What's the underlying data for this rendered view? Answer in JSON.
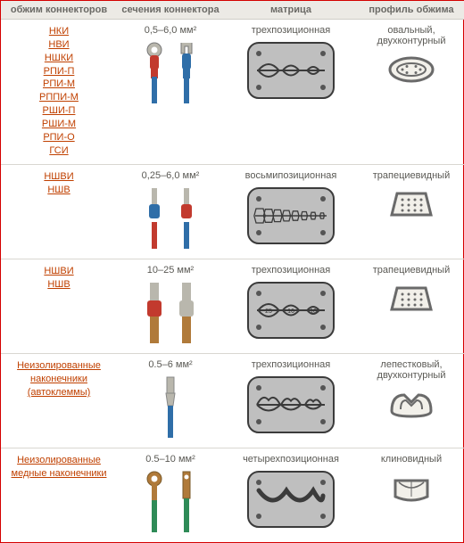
{
  "headers": {
    "col1": "обжим коннекторов",
    "col2": "сечения коннектора",
    "col3": "матрица",
    "col4": "профиль обжима"
  },
  "colors": {
    "border": "#d40000",
    "header_bg": "#eceae5",
    "header_text": "#6b6a66",
    "link": "#c04000",
    "die_fill": "#bfbfbf",
    "die_stroke": "#3b3b3b",
    "prof_stroke": "#6a6a6a",
    "prof_fill": "#f2f0ea",
    "wire_red": "#c23a2e",
    "wire_blue": "#2f6ea8",
    "wire_green": "#2e8b57",
    "copper": "#b07a3a",
    "metal": "#b9b7ad"
  },
  "rows": [
    {
      "links": [
        "НКИ",
        "НВИ",
        "НШКИ",
        "РПИ-П",
        "РПИ-М",
        "РППИ-М",
        "РШИ-П",
        "РШИ-М",
        "РПИ-О",
        "ГСИ"
      ],
      "section": "0,5–6,0 мм²",
      "matrix": "трехпозиционная",
      "profile": "овальный, двухконтурный",
      "die_type": "three",
      "profile_type": "oval",
      "connectors": [
        {
          "shape": "ring",
          "sleeve": "#c23a2e",
          "wire": "#2f6ea8"
        },
        {
          "shape": "fork",
          "sleeve": "#2f6ea8",
          "wire": "#2f6ea8"
        }
      ]
    },
    {
      "links": [
        "НШВИ",
        "НШВ"
      ],
      "section": "0,25–6,0 мм²",
      "matrix": "восьмипозиционная",
      "profile": "трапециевидный",
      "die_type": "eight",
      "profile_type": "trap",
      "connectors": [
        {
          "shape": "ferrule",
          "sleeve": "#2f6ea8",
          "wire": "#c23a2e"
        },
        {
          "shape": "ferrule",
          "sleeve": "#c23a2e",
          "wire": "#2f6ea8"
        }
      ]
    },
    {
      "links": [
        "НШВИ",
        "НШВ"
      ],
      "section": "10–25 мм²",
      "matrix": "трехпозиционная",
      "profile": "трапециевидный",
      "die_type": "three_lbl",
      "die_labels": [
        "25",
        "16",
        "10"
      ],
      "profile_type": "trap",
      "connectors": [
        {
          "shape": "bigferrule",
          "sleeve": "#c23a2e",
          "wire": "#b07a3a"
        },
        {
          "shape": "bigferrule",
          "sleeve": "#b9b7ad",
          "wire": "#b07a3a"
        }
      ]
    },
    {
      "links": [
        "Неизолированные наконечники (автоклеммы)"
      ],
      "section": "0.5–6 мм²",
      "matrix": "трехпозиционная",
      "profile": "лепестковый, двухконтурный",
      "die_type": "three_w",
      "profile_type": "petal",
      "connectors": [
        {
          "shape": "blade",
          "sleeve": "#b9b7ad",
          "wire": "#2f6ea8"
        }
      ]
    },
    {
      "links": [
        "Неизолированные медные наконечники"
      ],
      "section": "0.5–10 мм²",
      "matrix": "четырехпозиционная",
      "profile": "клиновидный",
      "die_type": "four_wave",
      "profile_type": "wedge",
      "connectors": [
        {
          "shape": "ringbare",
          "sleeve": "#b07a3a",
          "wire": "#2e8b57"
        },
        {
          "shape": "flatbare",
          "sleeve": "#b07a3a",
          "wire": "#2e8b57"
        }
      ]
    }
  ]
}
